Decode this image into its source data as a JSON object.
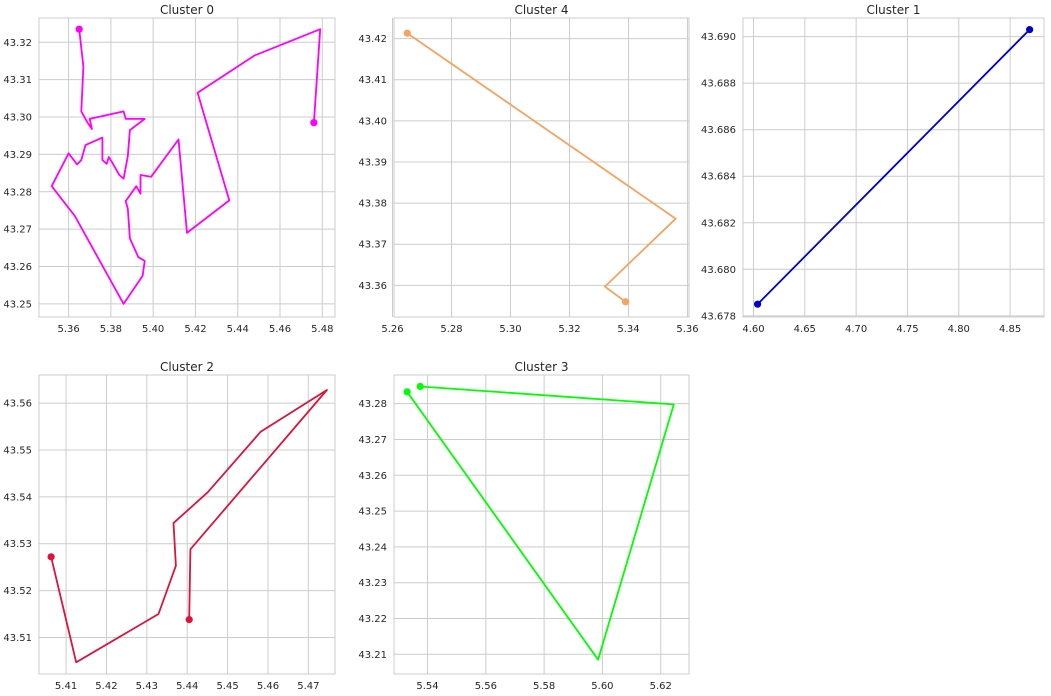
{
  "chart_data": [
    {
      "type": "line",
      "title": "Cluster 0",
      "color": "#ff00ff",
      "xlim": [
        5.346,
        5.486
      ],
      "ylim": [
        43.2465,
        43.3265
      ],
      "xticks": [
        5.36,
        5.38,
        5.4,
        5.42,
        5.44,
        5.46,
        5.48
      ],
      "xtick_labels": [
        "5.36",
        "5.38",
        "5.40",
        "5.42",
        "5.44",
        "5.46",
        "5.48"
      ],
      "yticks": [
        43.25,
        43.26,
        43.27,
        43.28,
        43.29,
        43.3,
        43.31,
        43.32
      ],
      "ytick_labels": [
        "43.25",
        "43.26",
        "43.27",
        "43.28",
        "43.29",
        "43.30",
        "43.31",
        "43.32"
      ],
      "grid": true,
      "markers": "endpoints",
      "x": [
        5.365,
        5.367,
        5.366,
        5.369,
        5.371,
        5.37,
        5.386,
        5.387,
        5.396,
        5.389,
        5.388,
        5.386,
        5.384,
        5.381,
        5.379,
        5.378,
        5.376,
        5.376,
        5.368,
        5.366,
        5.364,
        5.36,
        5.352,
        5.363,
        5.386,
        5.395,
        5.396,
        5.393,
        5.389,
        5.388,
        5.387,
        5.392,
        5.394,
        5.394,
        5.399,
        5.412,
        5.416,
        5.436,
        5.421,
        5.448,
        5.479,
        5.476
      ],
      "y": [
        43.3235,
        43.3135,
        43.3015,
        43.2985,
        43.2968,
        43.2995,
        43.3015,
        43.2995,
        43.2995,
        43.2965,
        43.2895,
        43.2835,
        43.2845,
        43.2875,
        43.2893,
        43.2875,
        43.2885,
        43.2945,
        43.2925,
        43.2885,
        43.2873,
        43.2903,
        43.2815,
        43.2735,
        43.25,
        43.2575,
        43.2615,
        43.2625,
        43.2675,
        43.2755,
        43.2775,
        43.2815,
        43.2795,
        43.2845,
        43.284,
        43.294,
        43.269,
        43.2777,
        43.3065,
        43.3165,
        43.3235,
        43.2985
      ]
    },
    {
      "type": "line",
      "title": "Cluster 4",
      "color": "#f4a460",
      "xlim": [
        5.2605,
        5.3605
      ],
      "ylim": [
        43.3523,
        43.425
      ],
      "xticks": [
        5.26,
        5.28,
        5.3,
        5.32,
        5.34,
        5.36
      ],
      "xtick_labels": [
        "5.26",
        "5.28",
        "5.30",
        "5.32",
        "5.34",
        "5.36"
      ],
      "yticks": [
        43.36,
        43.37,
        43.38,
        43.39,
        43.4,
        43.41,
        43.42
      ],
      "ytick_labels": [
        "43.36",
        "43.37",
        "43.38",
        "43.39",
        "43.40",
        "43.41",
        "43.42"
      ],
      "grid": true,
      "markers": "endpoints",
      "x": [
        5.265,
        5.356,
        5.332,
        5.339
      ],
      "y": [
        43.4213,
        43.3762,
        43.3597,
        43.356
      ]
    },
    {
      "type": "line",
      "title": "Cluster 1",
      "color": "#0000cd",
      "xlim": [
        4.5898,
        4.883
      ],
      "ylim": [
        43.67795,
        43.6908
      ],
      "xticks": [
        4.6,
        4.65,
        4.7,
        4.75,
        4.8,
        4.85
      ],
      "xtick_labels": [
        "4.60",
        "4.65",
        "4.70",
        "4.75",
        "4.80",
        "4.85"
      ],
      "yticks": [
        43.678,
        43.68,
        43.682,
        43.684,
        43.686,
        43.688,
        43.69
      ],
      "ytick_labels": [
        "43.678",
        "43.680",
        "43.682",
        "43.684",
        "43.686",
        "43.688",
        "43.690"
      ],
      "grid": true,
      "markers": "endpoints",
      "x": [
        4.604,
        4.869
      ],
      "y": [
        43.6785,
        43.6903
      ]
    },
    {
      "type": "line",
      "title": "Cluster 2",
      "color": "#dc143c",
      "xlim": [
        5.4033,
        5.4766
      ],
      "ylim": [
        43.5022,
        43.566
      ],
      "xticks": [
        5.41,
        5.42,
        5.43,
        5.44,
        5.45,
        5.46,
        5.47
      ],
      "xtick_labels": [
        "5.41",
        "5.42",
        "5.43",
        "5.44",
        "5.45",
        "5.46",
        "5.47"
      ],
      "yticks": [
        43.51,
        43.52,
        43.53,
        43.54,
        43.55,
        43.56
      ],
      "ytick_labels": [
        "43.51",
        "43.52",
        "43.53",
        "43.54",
        "43.55",
        "43.56"
      ],
      "grid": true,
      "markers": "endpoints",
      "x": [
        5.4063,
        5.4125,
        5.4329,
        5.4372,
        5.4366,
        5.4451,
        5.4582,
        5.4746,
        5.4408,
        5.4405
      ],
      "y": [
        43.5272,
        43.5047,
        43.515,
        43.5253,
        43.5344,
        43.541,
        43.5539,
        43.5628,
        43.5288,
        43.5138
      ]
    },
    {
      "type": "line",
      "title": "Cluster 3",
      "color": "#00ff00",
      "xlim": [
        5.5285,
        5.6297
      ],
      "ylim": [
        43.2045,
        43.288
      ],
      "xticks": [
        5.54,
        5.56,
        5.58,
        5.6,
        5.62
      ],
      "xtick_labels": [
        "5.54",
        "5.56",
        "5.58",
        "5.60",
        "5.62"
      ],
      "yticks": [
        43.21,
        43.22,
        43.23,
        43.24,
        43.25,
        43.26,
        43.27,
        43.28
      ],
      "ytick_labels": [
        "43.21",
        "43.22",
        "43.23",
        "43.24",
        "43.25",
        "43.26",
        "43.27",
        "43.28"
      ],
      "grid": true,
      "markers": "endpoints",
      "x": [
        5.5375,
        5.6245,
        5.5985,
        5.533
      ],
      "y": [
        43.2848,
        43.2798,
        43.2085,
        43.2833
      ]
    }
  ]
}
